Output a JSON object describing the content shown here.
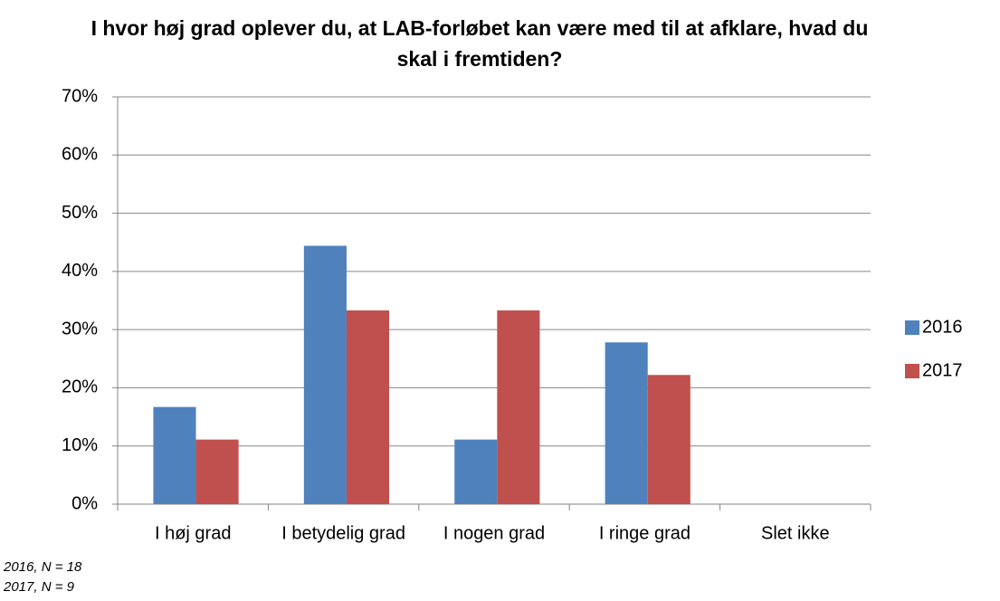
{
  "chart_data": {
    "type": "bar",
    "title": "I hvor høj grad oplever du, at LAB-forløbet kan være med til at afklare, hvad du skal i fremtiden?",
    "categories": [
      "I høj grad",
      "I betydelig grad",
      "I nogen grad",
      "I ringe grad",
      "Slet ikke"
    ],
    "series": [
      {
        "name": "2016",
        "color": "#4f81bd",
        "values": [
          16.7,
          44.4,
          11.1,
          27.8,
          0
        ]
      },
      {
        "name": "2017",
        "color": "#c0504d",
        "values": [
          11.1,
          33.3,
          33.3,
          22.2,
          0
        ]
      }
    ],
    "ylim": [
      0,
      70
    ],
    "yticks": [
      {
        "value": 0,
        "label": "0%"
      },
      {
        "value": 10,
        "label": "10%"
      },
      {
        "value": 20,
        "label": "20%"
      },
      {
        "value": 30,
        "label": "30%"
      },
      {
        "value": 40,
        "label": "40%"
      },
      {
        "value": 50,
        "label": "50%"
      },
      {
        "value": 60,
        "label": "60%"
      },
      {
        "value": 70,
        "label": "70%"
      }
    ],
    "grid": true,
    "legend": "right",
    "notes": [
      "2016, N = 18",
      "2017, N = 9"
    ]
  }
}
